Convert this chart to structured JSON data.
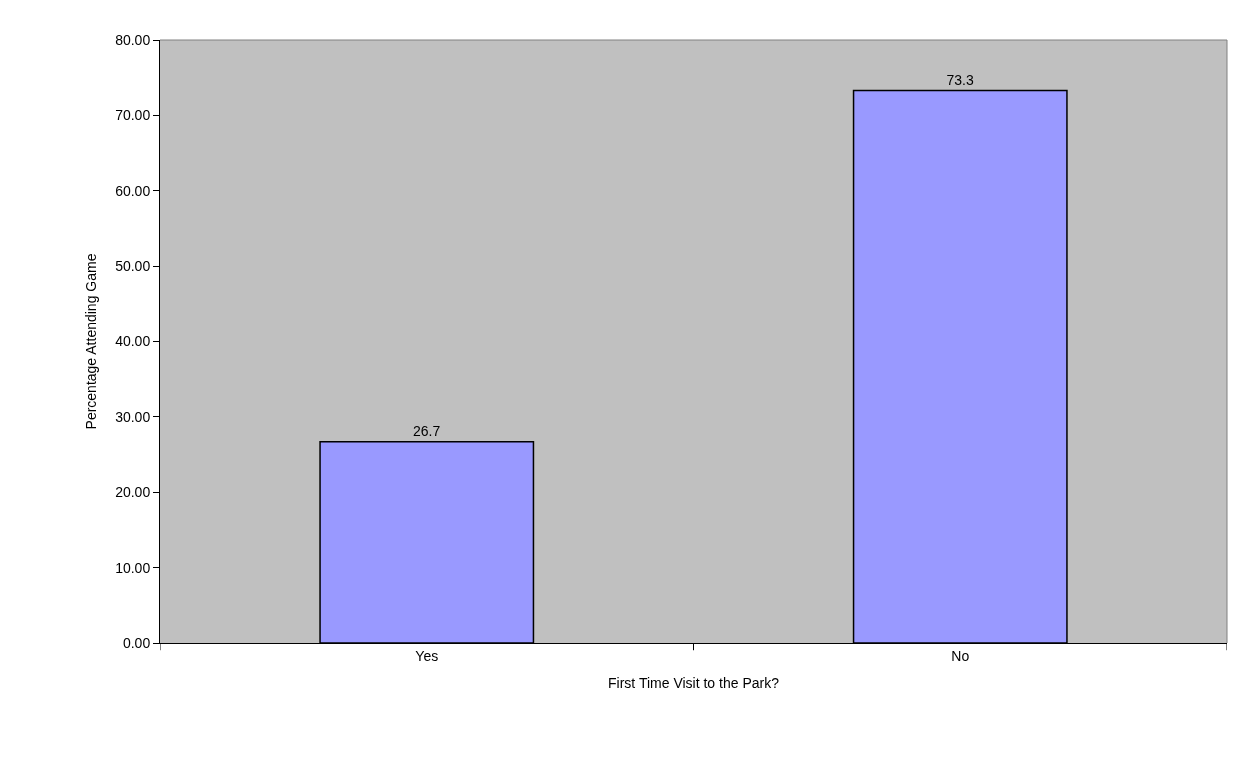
{
  "chart_data": {
    "type": "bar",
    "xlabel": "First Time Visit to the Park?",
    "ylabel": "Percentage Attending Game",
    "categories": [
      "Yes",
      "No"
    ],
    "values": [
      26.7,
      73.3
    ],
    "color": "#9999ff",
    "data_labels": true,
    "grid": false,
    "legend": false,
    "ylim": [
      0,
      80
    ],
    "yticks": [
      {
        "value": 0,
        "label": "0.00"
      },
      {
        "value": 10,
        "label": "10.00"
      },
      {
        "value": 20,
        "label": "20.00"
      },
      {
        "value": 30,
        "label": "30.00"
      },
      {
        "value": 40,
        "label": "40.00"
      },
      {
        "value": 50,
        "label": "50.00"
      },
      {
        "value": 60,
        "label": "60.00"
      },
      {
        "value": 70,
        "label": "70.00"
      },
      {
        "value": 80,
        "label": "80.00"
      }
    ]
  }
}
